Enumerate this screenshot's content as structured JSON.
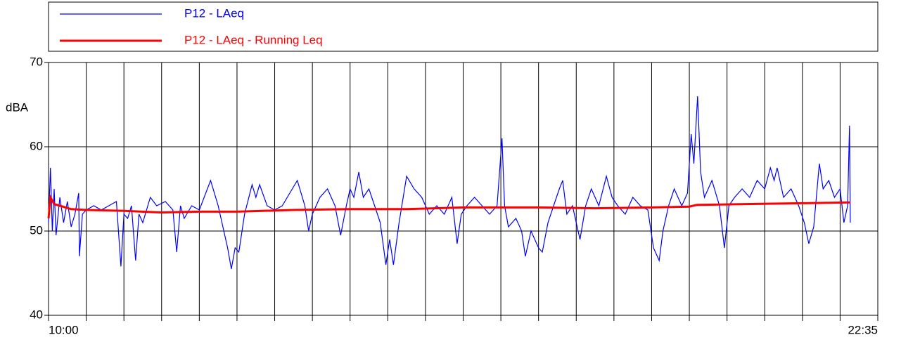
{
  "chart_data": {
    "type": "line",
    "ylabel": "dBA",
    "ylim": [
      40,
      70
    ],
    "yticks": [
      40,
      50,
      60,
      70
    ],
    "grid": true,
    "xlim": [
      0,
      22
    ],
    "xticks": [
      {
        "value": 0,
        "label": "10:00"
      },
      {
        "value": 1,
        "label": null
      },
      {
        "value": 2,
        "label": null
      },
      {
        "value": 3,
        "label": null
      },
      {
        "value": 4,
        "label": null
      },
      {
        "value": 5,
        "label": null
      },
      {
        "value": 6,
        "label": null
      },
      {
        "value": 7,
        "label": null
      },
      {
        "value": 8,
        "label": null
      },
      {
        "value": 9,
        "label": null
      },
      {
        "value": 10,
        "label": null
      },
      {
        "value": 11,
        "label": null
      },
      {
        "value": 12,
        "label": null
      },
      {
        "value": 13,
        "label": null
      },
      {
        "value": 14,
        "label": null
      },
      {
        "value": 15,
        "label": null
      },
      {
        "value": 16,
        "label": null
      },
      {
        "value": 17,
        "label": null
      },
      {
        "value": 18,
        "label": null
      },
      {
        "value": 19,
        "label": null
      },
      {
        "value": 20,
        "label": null
      },
      {
        "value": 21,
        "label": null
      },
      {
        "value": 22,
        "label": "22:35"
      }
    ],
    "series": [
      {
        "name": "P12 - LAeq",
        "color": "#0000ff",
        "x": [
          0,
          0.05,
          0.1,
          0.15,
          0.2,
          0.3,
          0.4,
          0.5,
          0.6,
          0.7,
          0.8,
          0.82,
          0.9,
          1.0,
          1.2,
          1.4,
          1.6,
          1.8,
          1.92,
          2.0,
          2.1,
          2.2,
          2.31,
          2.4,
          2.5,
          2.7,
          2.87,
          3.1,
          3.3,
          3.4,
          3.5,
          3.6,
          3.8,
          4.0,
          4.3,
          4.5,
          4.75,
          4.85,
          4.95,
          5.05,
          5.2,
          5.4,
          5.5,
          5.6,
          5.8,
          6.0,
          6.2,
          6.4,
          6.6,
          6.8,
          6.9,
          7.0,
          7.2,
          7.4,
          7.6,
          7.75,
          7.9,
          8.0,
          8.1,
          8.23,
          8.35,
          8.5,
          8.65,
          8.8,
          8.95,
          9.05,
          9.15,
          9.3,
          9.5,
          9.7,
          9.9,
          10.1,
          10.3,
          10.5,
          10.7,
          10.84,
          10.95,
          11.1,
          11.3,
          11.5,
          11.7,
          11.9,
          12.03,
          12.1,
          12.2,
          12.4,
          12.55,
          12.65,
          12.8,
          13.0,
          13.1,
          13.25,
          13.4,
          13.55,
          13.64,
          13.75,
          13.9,
          14.1,
          14.25,
          14.4,
          14.6,
          14.8,
          14.95,
          15.1,
          15.3,
          15.5,
          15.7,
          15.9,
          16.05,
          16.2,
          16.3,
          16.45,
          16.6,
          16.8,
          16.95,
          17.05,
          17.12,
          17.22,
          17.3,
          17.4,
          17.6,
          17.8,
          17.93,
          18.05,
          18.2,
          18.4,
          18.6,
          18.8,
          19.0,
          19.15,
          19.25,
          19.33,
          19.5,
          19.7,
          19.9,
          20.05,
          20.17,
          20.3,
          20.45,
          20.55,
          20.7,
          20.85,
          21.0,
          21.1,
          21.2,
          21.25,
          21.27
        ],
        "values": [
          51,
          57.5,
          50,
          55,
          49.5,
          54,
          51,
          53.5,
          50.5,
          52,
          54.5,
          47,
          52,
          52.5,
          53,
          52.5,
          53,
          53.5,
          45.8,
          52,
          51.5,
          53,
          46.5,
          52,
          51,
          54,
          53,
          53.5,
          52.5,
          47.5,
          53,
          51.5,
          53,
          52.5,
          56,
          53,
          48,
          45.5,
          48,
          47.5,
          52,
          55.5,
          54,
          55.5,
          53,
          52.5,
          53,
          54.5,
          56,
          53,
          50,
          52,
          54,
          55,
          53,
          49.5,
          53,
          55,
          54,
          57,
          54,
          55,
          53,
          51,
          46,
          49,
          46,
          51,
          56.5,
          55,
          54,
          52,
          53,
          52,
          54,
          48.5,
          52,
          53,
          54,
          53,
          52,
          53,
          61,
          53,
          50.5,
          51.5,
          50,
          47,
          50,
          48,
          47.5,
          51,
          53,
          55,
          56,
          52,
          53,
          49,
          53,
          55,
          53,
          56.5,
          54,
          53,
          52,
          54,
          53,
          52.5,
          48,
          46.5,
          50,
          53,
          55,
          53,
          54.5,
          61.5,
          58,
          66,
          57,
          54,
          56,
          53,
          48,
          53,
          54,
          55,
          54,
          56,
          55,
          57.5,
          56,
          57.5,
          54,
          55,
          53,
          51,
          48.5,
          50.5,
          58,
          55,
          56,
          54,
          55,
          51,
          53,
          62.5,
          51
        ]
      },
      {
        "name": "P12 - LAeq - Running Leq",
        "color": "#ff0000",
        "x": [
          0,
          0.05,
          0.15,
          0.3,
          0.6,
          1.0,
          2.0,
          3.0,
          4.0,
          5.0,
          6.5,
          8.0,
          9.5,
          11.0,
          13.0,
          14.5,
          16.0,
          17.0,
          17.2,
          18.5,
          20.0,
          21.27
        ],
        "values": [
          51.5,
          54,
          53.2,
          53,
          52.6,
          52.5,
          52.4,
          52.2,
          52.3,
          52.3,
          52.5,
          52.6,
          52.6,
          52.8,
          52.8,
          52.7,
          52.8,
          52.9,
          53.1,
          53.2,
          53.3,
          53.4
        ]
      }
    ]
  }
}
